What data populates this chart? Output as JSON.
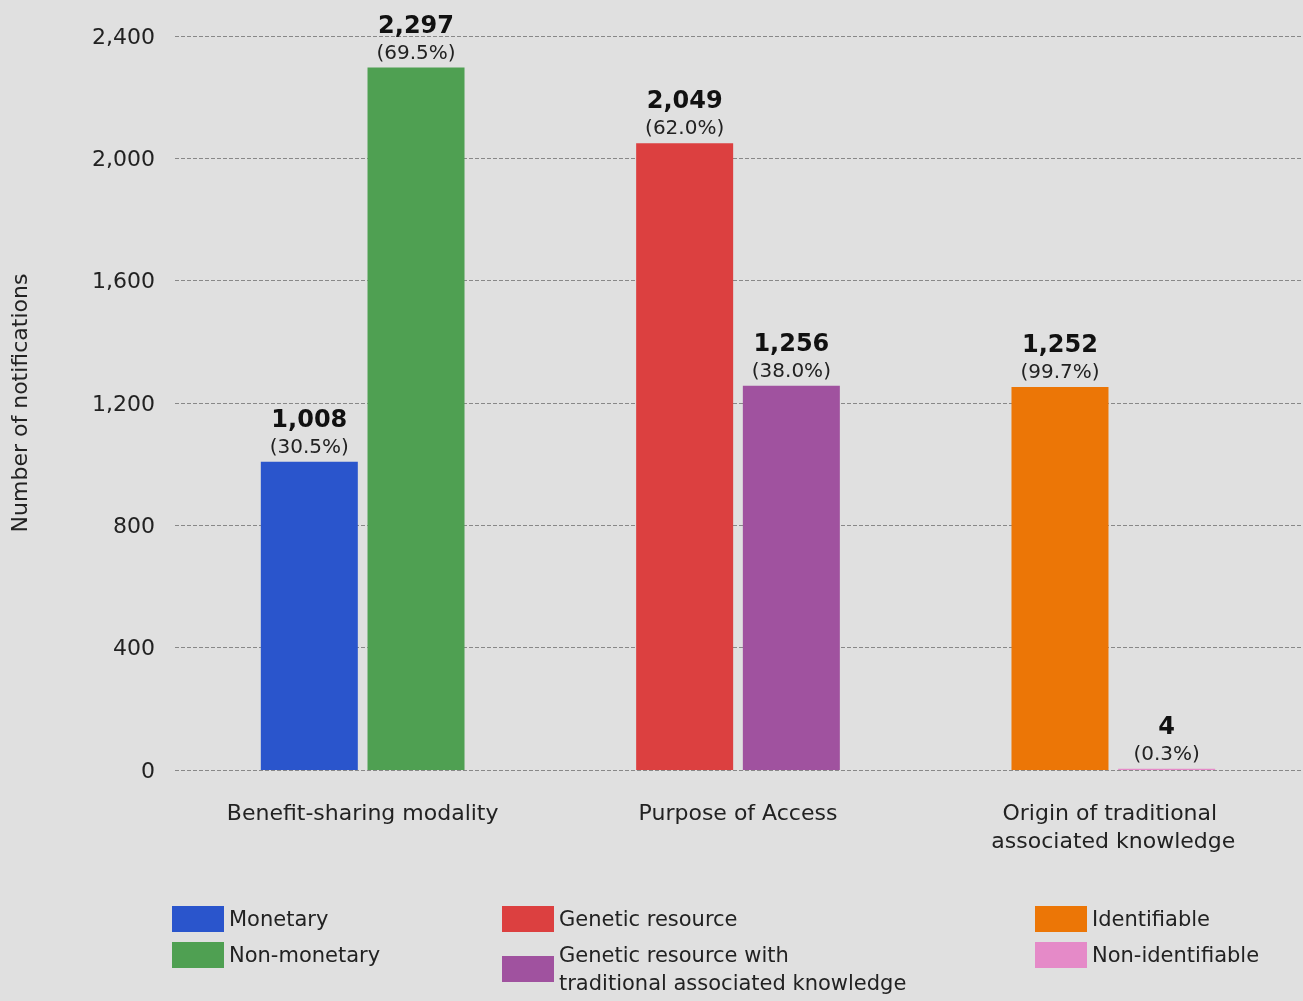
{
  "chart_data": {
    "type": "bar",
    "ylabel": "Number of notifications",
    "categories": [
      "Benefit-sharing modality",
      "Purpose of Access",
      "Origin of traditional associated knowledge"
    ],
    "series": [
      {
        "name": "Monetary",
        "color": "#2a55cc",
        "values": [
          1008,
          null,
          null
        ],
        "value_labels": [
          "1,008\n(30.5%)",
          null,
          null
        ]
      },
      {
        "name": "Non-monetary",
        "color": "#4fa052",
        "values": [
          2297,
          null,
          null
        ],
        "value_labels": [
          "2,297\n(69.5%)",
          null,
          null
        ]
      },
      {
        "name": "Genetic resource",
        "color": "#dc4040",
        "values": [
          null,
          2049,
          null
        ],
        "value_labels": [
          null,
          "2,049\n(62.0%)",
          null
        ]
      },
      {
        "name": "Genetic resource with traditional associated knowledge",
        "color": "#a0529f",
        "values": [
          null,
          1256,
          null
        ],
        "value_labels": [
          null,
          "1,256\n(38.0%)",
          null
        ]
      },
      {
        "name": "Identifiable",
        "color": "#ec7606",
        "values": [
          null,
          null,
          1252
        ],
        "value_labels": [
          null,
          null,
          "1,252\n(99.7%)"
        ]
      },
      {
        "name": "Non-identifiable",
        "color": "#e58ac8",
        "values": [
          null,
          null,
          4
        ],
        "value_labels": [
          null,
          null,
          "4\n(0.3%)"
        ]
      }
    ],
    "ylim": [
      0,
      2400
    ],
    "yticks": [
      0,
      400,
      800,
      {
        "value": 1200,
        "label": "1,200"
      },
      {
        "value": 1600,
        "label": "1,600"
      },
      {
        "value": 2000,
        "label": "2,000"
      },
      {
        "value": 2400,
        "label": "2,400"
      }
    ],
    "grid": "y",
    "legend": "bottom"
  }
}
